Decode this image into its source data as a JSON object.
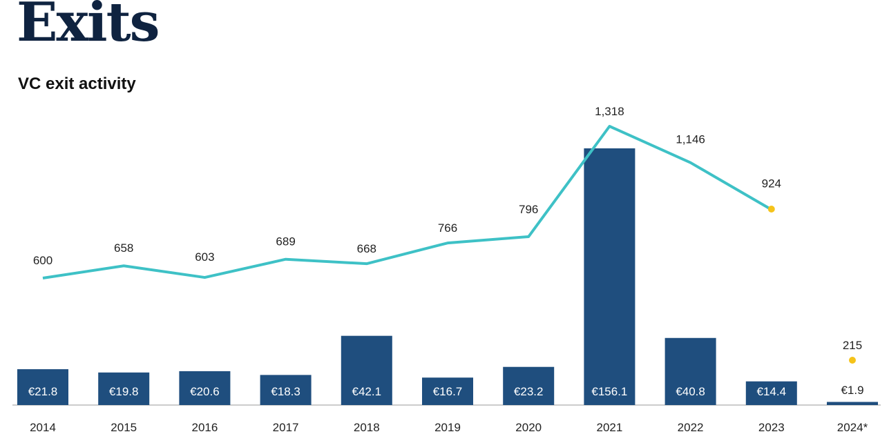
{
  "page": {
    "title": "Exits",
    "subtitle": "VC exit activity"
  },
  "colors": {
    "bar": "#1f4e7e",
    "line": "#3ec1c6",
    "highlight_dot": "#f5c31a",
    "title": "#0f2340"
  },
  "chart_data": {
    "type": "bar",
    "title": "",
    "categories": [
      "2014",
      "2015",
      "2016",
      "2017",
      "2018",
      "2019",
      "2020",
      "2021",
      "2022",
      "2023",
      "2024*"
    ],
    "series": [
      {
        "type": "bar",
        "values": [
          21.8,
          19.8,
          20.6,
          18.3,
          42.1,
          16.7,
          23.2,
          156.1,
          40.8,
          14.4,
          1.9
        ],
        "labels": [
          "€21.8",
          "€19.8",
          "€20.6",
          "€18.3",
          "€42.1",
          "€16.7",
          "€23.2",
          "€156.1",
          "€40.8",
          "€14.4",
          "€1.9"
        ]
      },
      {
        "type": "line",
        "values": [
          600,
          658,
          603,
          689,
          668,
          766,
          796,
          1318,
          1146,
          924,
          null
        ],
        "labels": [
          "600",
          "658",
          "603",
          "689",
          "668",
          "766",
          "796",
          "1,318",
          "1,146",
          "924",
          "215"
        ]
      }
    ],
    "points": [
      {
        "category": "2023",
        "value": 924
      },
      {
        "category": "2024*",
        "value": 215
      }
    ],
    "xlabel": "",
    "ylabel": "",
    "grid": false,
    "legend": "none"
  }
}
